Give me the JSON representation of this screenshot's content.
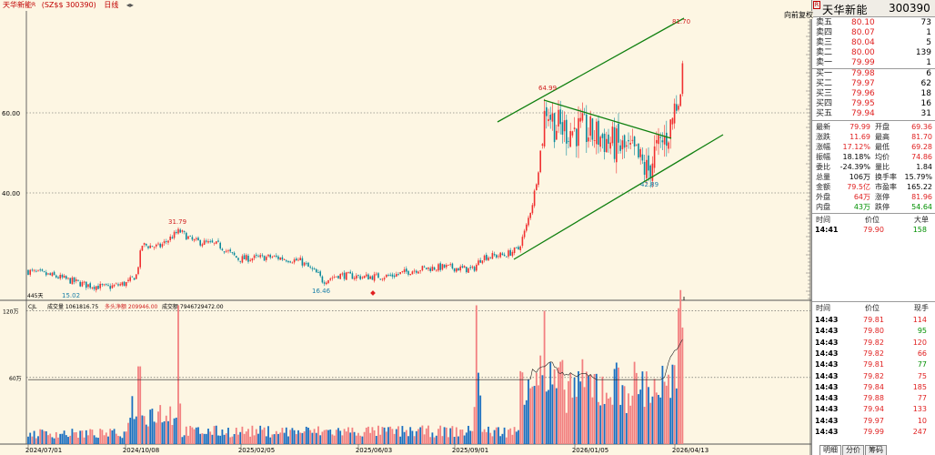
{
  "title_bar": {
    "name": "天华新能",
    "flag": "R",
    "code": "(SZ$$ 300390)",
    "period": "日线",
    "arrows": "◂▸"
  },
  "right_panel": {
    "badge": "R",
    "stock_name": "天华新能",
    "stock_code": "300390",
    "adjust_button": "向前复权",
    "sell_orders": [
      {
        "label": "卖五",
        "price": "80.10",
        "volume": "73"
      },
      {
        "label": "卖四",
        "price": "80.07",
        "volume": "1"
      },
      {
        "label": "卖三",
        "price": "80.04",
        "volume": "5"
      },
      {
        "label": "卖二",
        "price": "80.00",
        "volume": "139"
      },
      {
        "label": "卖一",
        "price": "79.99",
        "volume": "1"
      }
    ],
    "buy_orders": [
      {
        "label": "买一",
        "price": "79.98",
        "volume": "6"
      },
      {
        "label": "买二",
        "price": "79.97",
        "volume": "62"
      },
      {
        "label": "买三",
        "price": "79.96",
        "volume": "18"
      },
      {
        "label": "买四",
        "price": "79.95",
        "volume": "16"
      },
      {
        "label": "买五",
        "price": "79.94",
        "volume": "31"
      }
    ],
    "stats": [
      {
        "l1": "最新",
        "v1": "79.99",
        "c1": "red",
        "l2": "开盘",
        "v2": "69.36",
        "c2": "red"
      },
      {
        "l1": "涨跌",
        "v1": "11.69",
        "c1": "red",
        "l2": "最高",
        "v2": "81.70",
        "c2": "red"
      },
      {
        "l1": "涨幅",
        "v1": "17.12%",
        "c1": "red",
        "l2": "最低",
        "v2": "69.28",
        "c2": "red"
      },
      {
        "l1": "振幅",
        "v1": "18.18%",
        "c1": "blk",
        "l2": "均价",
        "v2": "74.86",
        "c2": "red"
      },
      {
        "l1": "委比",
        "v1": "-24.39%",
        "c1": "blk",
        "l2": "量比",
        "v2": "1.84",
        "c2": "blk"
      },
      {
        "l1": "总量",
        "v1": "106万",
        "c1": "blk",
        "l2": "换手率",
        "v2": "15.79%",
        "c2": "blk"
      },
      {
        "l1": "金额",
        "v1": "79.5亿",
        "c1": "red",
        "l2": "市盈率",
        "v2": "165.22",
        "c2": "blk"
      },
      {
        "l1": "外盘",
        "v1": "64万",
        "c1": "red",
        "l2": "涨停",
        "v2": "81.96",
        "c2": "red"
      },
      {
        "l1": "内盘",
        "v1": "43万",
        "c1": "green",
        "l2": "跌停",
        "v2": "54.64",
        "c2": "green"
      }
    ],
    "big_header": {
      "c1": "时间",
      "c2": "价位",
      "c3": "大单"
    },
    "big_row": {
      "time": "14:41",
      "price": "79.90",
      "vol": "158"
    },
    "tick_header": {
      "c1": "时间",
      "c2": "价位",
      "c3": "现手"
    },
    "ticks": [
      {
        "time": "14:43",
        "price": "79.81",
        "vol": "114",
        "color": "red"
      },
      {
        "time": "14:43",
        "price": "79.80",
        "vol": "95",
        "color": "green"
      },
      {
        "time": "14:43",
        "price": "79.82",
        "vol": "120",
        "color": "red"
      },
      {
        "time": "14:43",
        "price": "79.82",
        "vol": "66",
        "color": "red"
      },
      {
        "time": "14:43",
        "price": "79.81",
        "vol": "77",
        "color": "green"
      },
      {
        "time": "14:43",
        "price": "79.82",
        "vol": "75",
        "color": "red"
      },
      {
        "time": "14:43",
        "price": "79.84",
        "vol": "185",
        "color": "red"
      },
      {
        "time": "14:43",
        "price": "79.88",
        "vol": "77",
        "color": "red"
      },
      {
        "time": "14:43",
        "price": "79.94",
        "vol": "133",
        "color": "red"
      },
      {
        "time": "14:43",
        "price": "79.97",
        "vol": "10",
        "color": "red"
      },
      {
        "time": "14:43",
        "price": "79.99",
        "vol": "247",
        "color": "red"
      }
    ],
    "bottom_tabs": [
      "明细",
      "分价",
      "筹码"
    ]
  },
  "chart": {
    "price_ticks": [
      "60.00",
      "40.00"
    ],
    "volume_ticks": [
      "120万",
      "60万"
    ],
    "date_labels": [
      "2024/07/01",
      "2024/10/08",
      "2025/02/05",
      "2025/06/03",
      "2025/09/01",
      "2026/01/05",
      "2026/04/13"
    ],
    "annotations": {
      "hi1": "31.79",
      "lo1": "15.02",
      "lo2": "16.46",
      "hi2": "64.99",
      "lo3": "42.89",
      "hi3": "81.70",
      "days": "445天"
    },
    "volume_legend": {
      "indicator": "CJL",
      "vol_label": "成交量 1061816.75",
      "net_label": "多头净额 209946.00",
      "amt_label": "成交额 7946729472.00"
    },
    "colors": {
      "up": "#f03030",
      "down": "#1a6fc0",
      "trend": "#108010"
    }
  }
}
